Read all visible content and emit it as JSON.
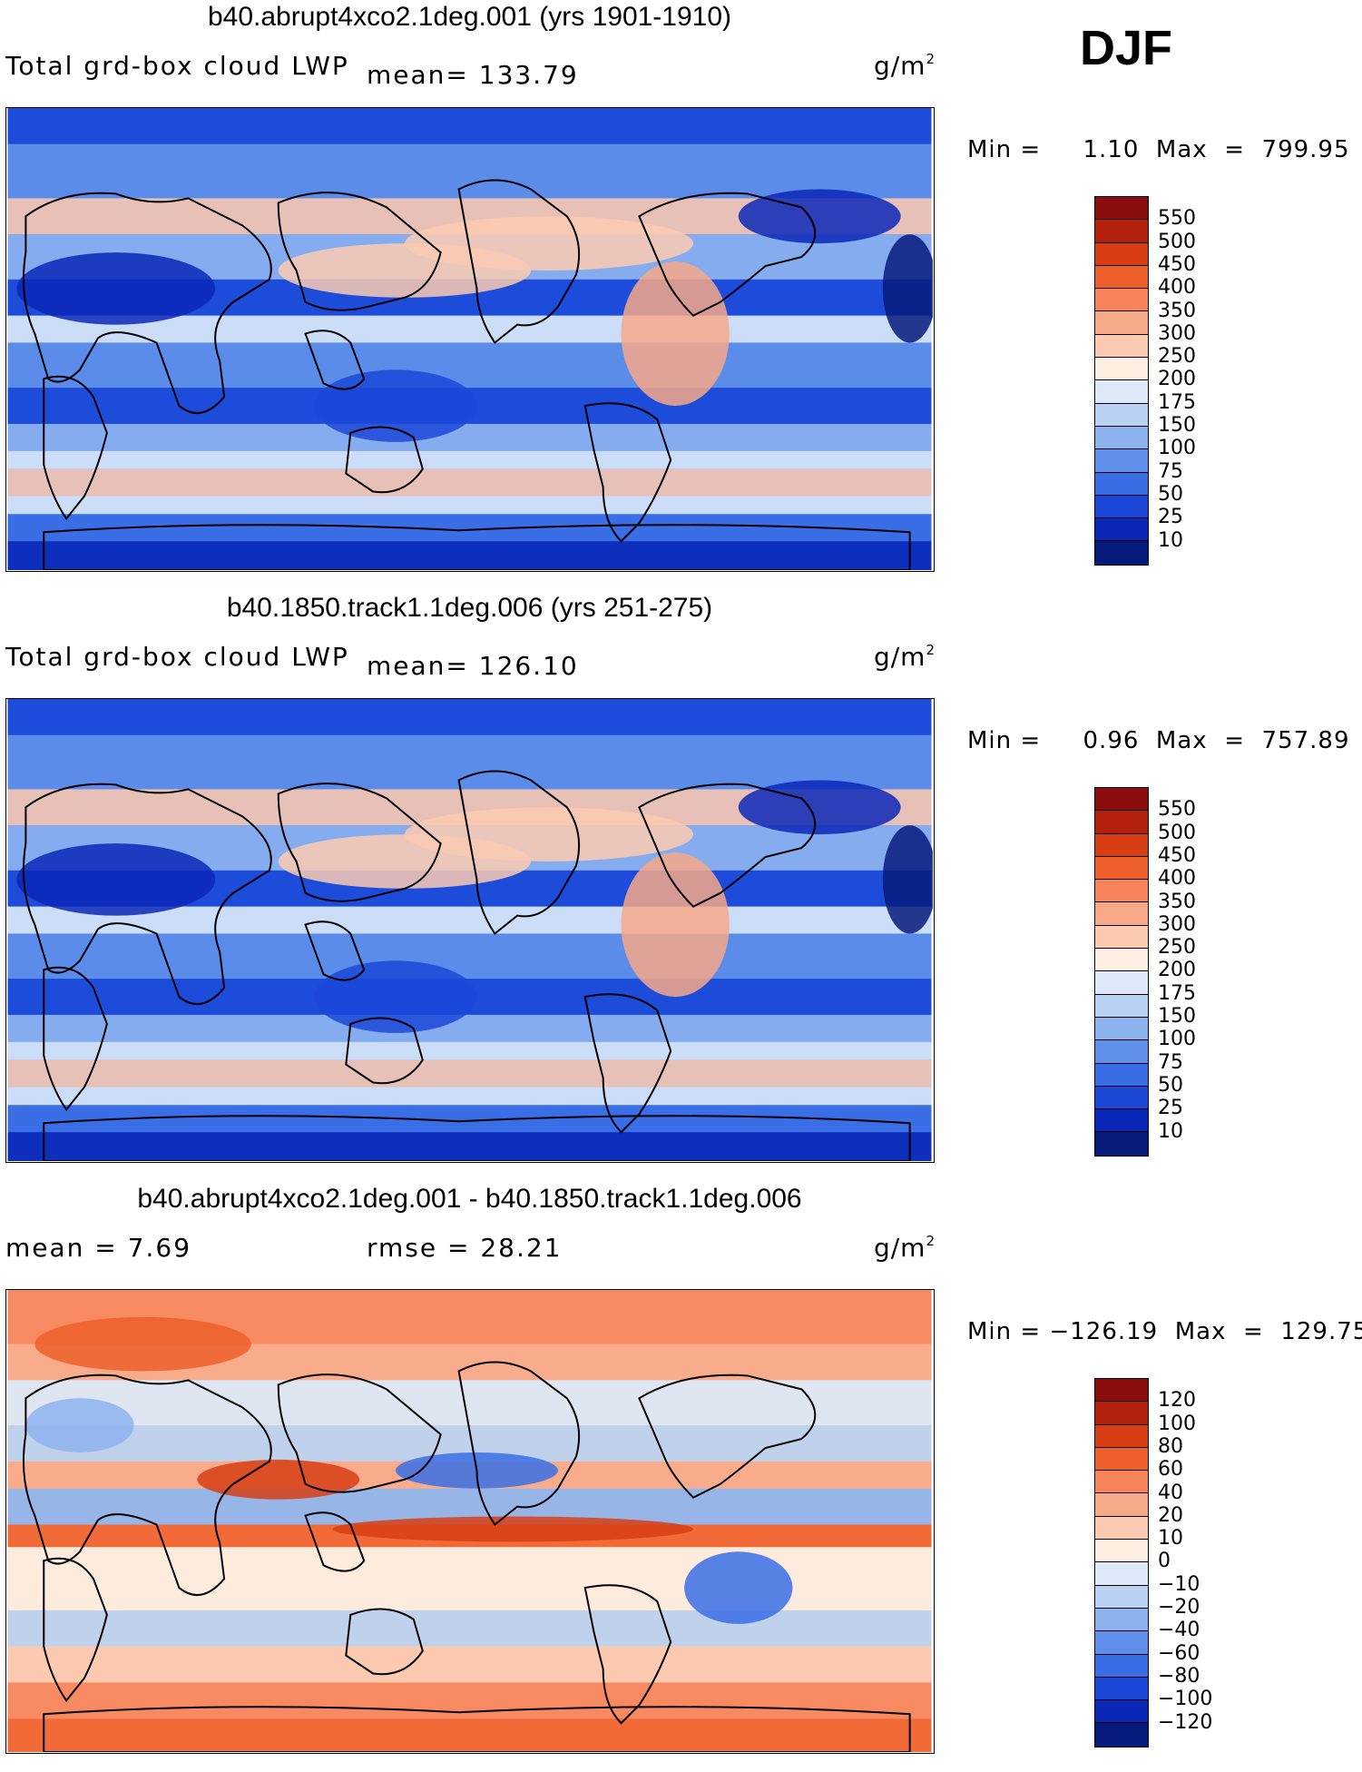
{
  "season": "DJF",
  "units": "g/m",
  "units_exp": "2",
  "panels": [
    {
      "title": "b40.abrupt4xco2.1deg.001 (yrs 1901-1910)",
      "subtitle_left": "Total grd-box cloud LWP",
      "subtitle_mid": "mean= 133.79",
      "minmax": "Min =     1.10  Max  =  799.95",
      "colorbar": {
        "labels": [
          "550",
          "500",
          "450",
          "400",
          "350",
          "300",
          "250",
          "200",
          "175",
          "150",
          "100",
          "75",
          "50",
          "25",
          "10"
        ],
        "colors": [
          "#8a0e0e",
          "#b3210c",
          "#d73e14",
          "#ef5f2b",
          "#f7835a",
          "#f7a888",
          "#fbcab1",
          "#fdf0e3",
          "#dde9f8",
          "#b9d1f3",
          "#8db3ee",
          "#5f8fea",
          "#3a6ee6",
          "#1c48d8",
          "#0a27b8",
          "#061a7c"
        ]
      },
      "chart_data": {
        "type": "heatmap",
        "title": "b40.abrupt4xco2.1deg.001 (yrs 1901-1910)",
        "variable": "Total grd-box cloud LWP",
        "mean": 133.79,
        "min": 1.1,
        "max": 799.95,
        "units": "g/m^2",
        "levels": [
          10,
          25,
          50,
          75,
          100,
          150,
          175,
          200,
          250,
          300,
          350,
          400,
          450,
          500,
          550
        ]
      }
    },
    {
      "title": "b40.1850.track1.1deg.006 (yrs 251-275)",
      "subtitle_left": "Total grd-box cloud LWP",
      "subtitle_mid": "mean= 126.10",
      "minmax": "Min =     0.96  Max  =  757.89",
      "colorbar": {
        "labels": [
          "550",
          "500",
          "450",
          "400",
          "350",
          "300",
          "250",
          "200",
          "175",
          "150",
          "100",
          "75",
          "50",
          "25",
          "10"
        ],
        "colors": [
          "#8a0e0e",
          "#b3210c",
          "#d73e14",
          "#ef5f2b",
          "#f7835a",
          "#f7a888",
          "#fbcab1",
          "#fdf0e3",
          "#dde9f8",
          "#b9d1f3",
          "#8db3ee",
          "#5f8fea",
          "#3a6ee6",
          "#1c48d8",
          "#0a27b8",
          "#061a7c"
        ]
      },
      "chart_data": {
        "type": "heatmap",
        "title": "b40.1850.track1.1deg.006 (yrs 251-275)",
        "variable": "Total grd-box cloud LWP",
        "mean": 126.1,
        "min": 0.96,
        "max": 757.89,
        "units": "g/m^2",
        "levels": [
          10,
          25,
          50,
          75,
          100,
          150,
          175,
          200,
          250,
          300,
          350,
          400,
          450,
          500,
          550
        ]
      }
    },
    {
      "title": "b40.abrupt4xco2.1deg.001 - b40.1850.track1.1deg.006",
      "subtitle_left": "mean =     7.69",
      "subtitle_mid": "rmse =    28.21",
      "minmax": "Min = −126.19  Max  =  129.75",
      "colorbar": {
        "labels": [
          "120",
          "100",
          "80",
          "60",
          "40",
          "20",
          "10",
          "0",
          "−10",
          "−20",
          "−40",
          "−60",
          "−80",
          "−100",
          "−120"
        ],
        "colors": [
          "#8a0e0e",
          "#b3210c",
          "#d73e14",
          "#ef5f2b",
          "#f7835a",
          "#f7a888",
          "#fbcab1",
          "#fdf0e3",
          "#dde9f8",
          "#b9d1f3",
          "#8db3ee",
          "#5f8fea",
          "#3a6ee6",
          "#1c48d8",
          "#0a27b8",
          "#061a7c"
        ]
      },
      "chart_data": {
        "type": "heatmap",
        "title": "b40.abrupt4xco2.1deg.001 - b40.1850.track1.1deg.006",
        "mean": 7.69,
        "rmse": 28.21,
        "min": -126.19,
        "max": 129.75,
        "units": "g/m^2",
        "levels": [
          -120,
          -100,
          -80,
          -60,
          -40,
          -20,
          -10,
          0,
          10,
          20,
          40,
          60,
          80,
          100,
          120
        ]
      }
    }
  ]
}
